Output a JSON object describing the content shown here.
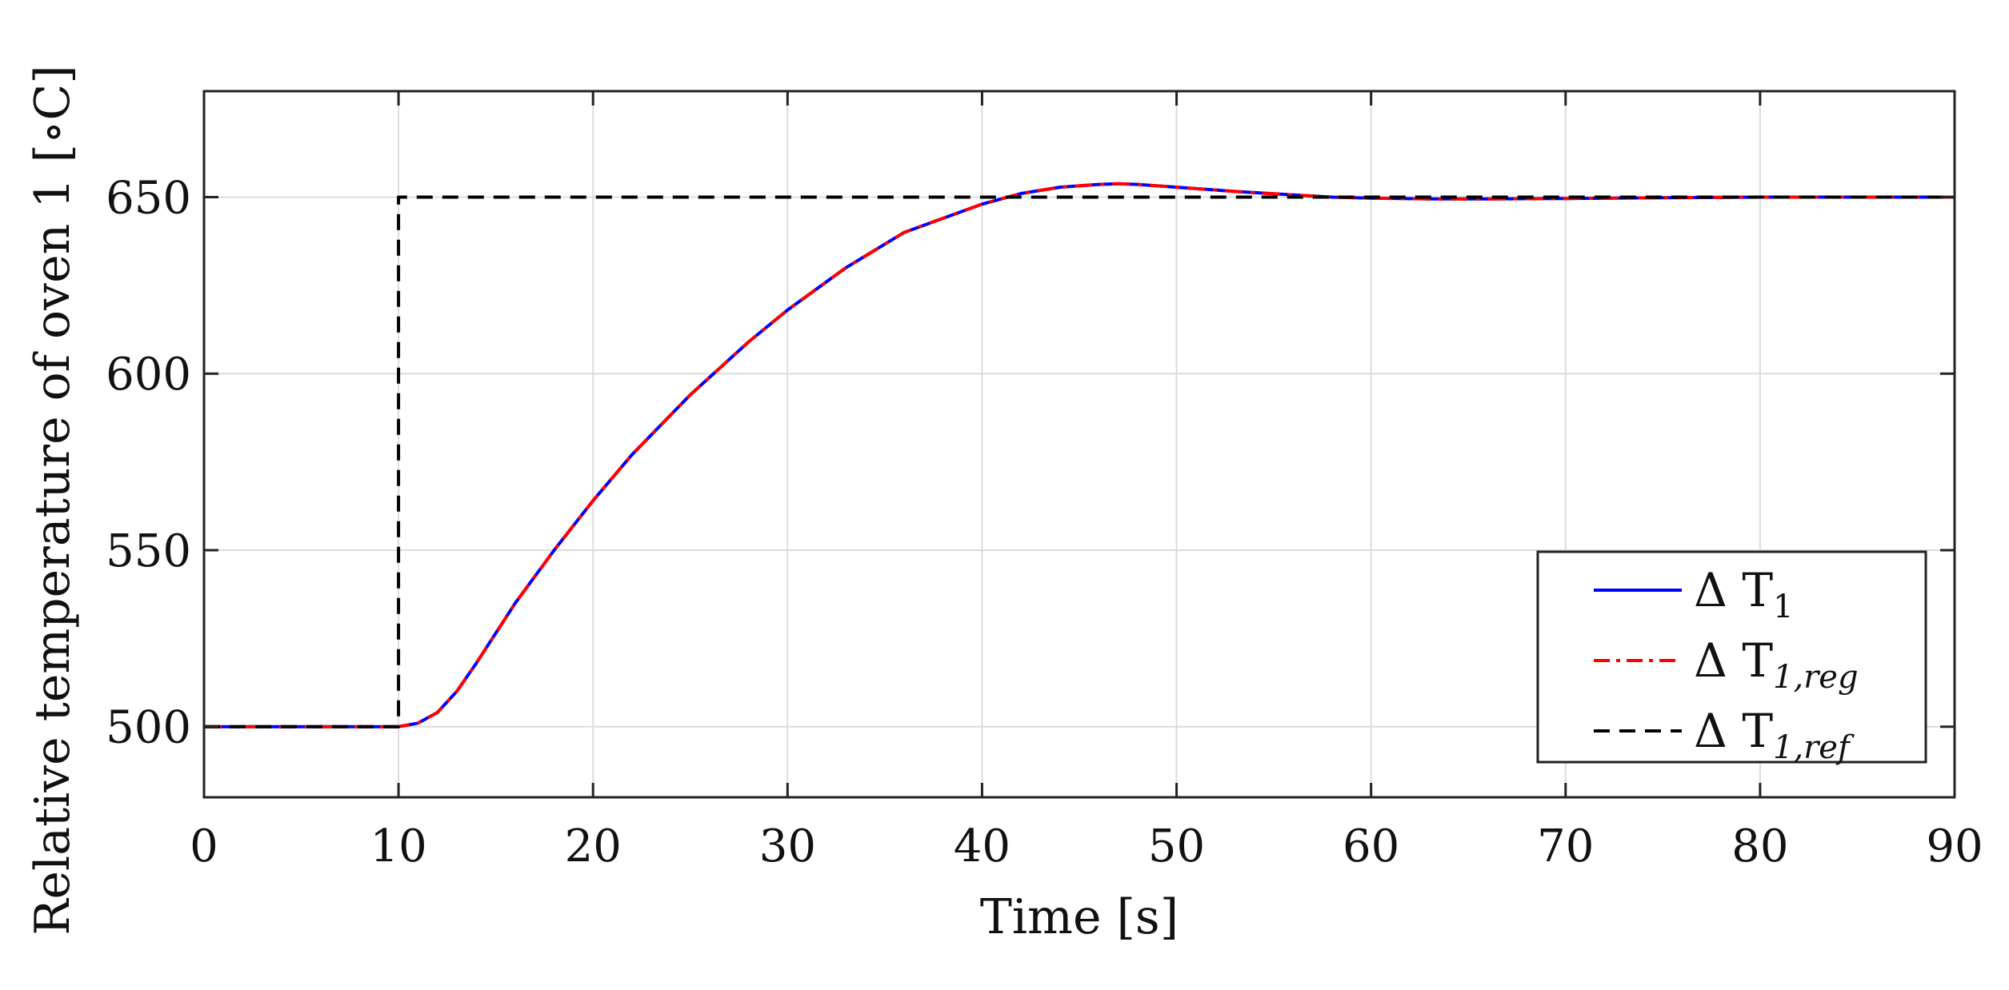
{
  "chart_data": {
    "type": "line",
    "xlabel": "Time [s]",
    "ylabel": "Relative temperature of oven 1 [∘C]",
    "xlim": [
      0,
      90
    ],
    "ylim": [
      480,
      680
    ],
    "xticks": [
      0,
      10,
      20,
      30,
      40,
      50,
      60,
      70,
      80,
      90
    ],
    "yticks": [
      500,
      550,
      600,
      650
    ],
    "grid": true,
    "legend_position": "bottom-right",
    "series": [
      {
        "name": "Δ T1",
        "legend_main": "Δ T",
        "legend_sub": "1",
        "color": "#0000ff",
        "style": "solid",
        "x": [
          0,
          10,
          11,
          12,
          13,
          14,
          16,
          18,
          20,
          22,
          25,
          28,
          30,
          33,
          36,
          40,
          42,
          44,
          46,
          47,
          48,
          50,
          53,
          56,
          58,
          60,
          63,
          66,
          70,
          75,
          80,
          85,
          90
        ],
        "y": [
          500,
          500,
          501,
          504,
          510,
          518,
          535,
          550,
          564,
          577,
          594,
          609,
          618,
          630,
          640,
          648,
          651,
          652.8,
          653.6,
          653.8,
          653.6,
          652.8,
          651.6,
          650.6,
          650,
          649.7,
          649.5,
          649.5,
          649.6,
          649.8,
          650,
          650,
          650
        ]
      },
      {
        "name": "Δ T1,reg",
        "legend_main": "Δ T",
        "legend_sub": "1,reg",
        "color": "#ff0000",
        "style": "dashdot",
        "x": [
          0,
          10,
          11,
          12,
          13,
          14,
          16,
          18,
          20,
          22,
          25,
          28,
          30,
          33,
          36,
          40,
          42,
          44,
          46,
          47,
          48,
          50,
          53,
          56,
          58,
          60,
          63,
          66,
          70,
          75,
          80,
          85,
          90
        ],
        "y": [
          500,
          500,
          501,
          504,
          510,
          518,
          535,
          550,
          564,
          577,
          594,
          609,
          618,
          630,
          640,
          648,
          651,
          652.8,
          653.6,
          653.8,
          653.6,
          652.8,
          651.6,
          650.6,
          650,
          649.7,
          649.5,
          649.5,
          649.6,
          649.8,
          650,
          650,
          650
        ]
      },
      {
        "name": "Δ T1,ref",
        "legend_main": "Δ T",
        "legend_sub": "1,ref",
        "color": "#000000",
        "style": "dashed",
        "x": [
          0,
          10,
          10,
          90
        ],
        "y": [
          500,
          500,
          650,
          650
        ]
      }
    ]
  }
}
